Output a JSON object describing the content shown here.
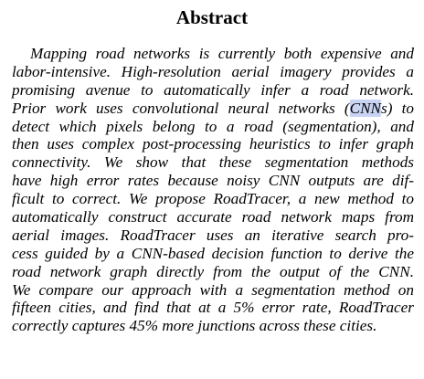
{
  "heading": "Abstract",
  "body": {
    "lines": [
      "Mapping road networks is currently both expensive and",
      "labor-intensive. High-resolution aerial imagery provides a",
      "promising avenue to automatically infer a road network.",
      "Prior work uses convolutional neural networks (",
      "CNN",
      "s) to",
      "detect which pixels belong to a road (segmentation), and",
      "then uses complex post-processing heuristics to infer graph",
      "connectivity. We show that these segmentation methods",
      "have high error rates because noisy CNN outputs are dif-",
      "ficult to correct. We propose RoadTracer, a new method to",
      "automatically construct accurate road network maps from",
      "aerial images. RoadTracer uses an iterative search pro-",
      "cess guided by a CNN-based decision function to derive the",
      "road network graph directly from the output of the CNN.",
      "We compare our approach with a segmentation method on",
      "fifteen cities, and find that at a 5% error rate, RoadTracer",
      "correctly captures 45% more junctions across these cities."
    ],
    "highlight_color": "#c9d3f2"
  }
}
